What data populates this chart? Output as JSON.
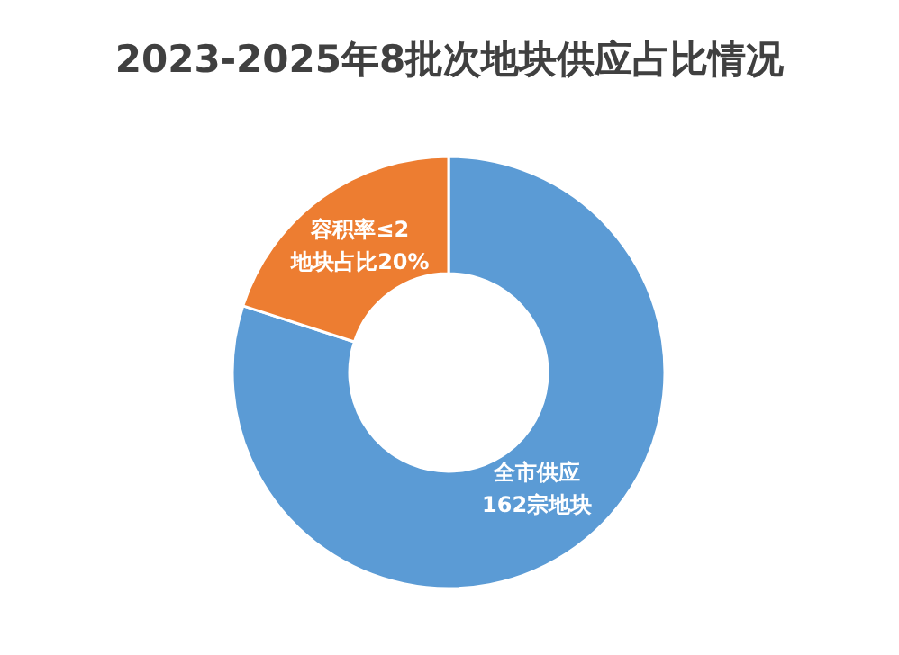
{
  "chart_data": {
    "type": "donut",
    "title": "2023-2025年8批次地块供应占比情况",
    "categories": [
      "全市供应\n162宗地块",
      "容积率≤2\n地块占比20%"
    ],
    "values": [
      80,
      20
    ],
    "colors": [
      "#5b9bd5",
      "#ed7d31"
    ]
  }
}
